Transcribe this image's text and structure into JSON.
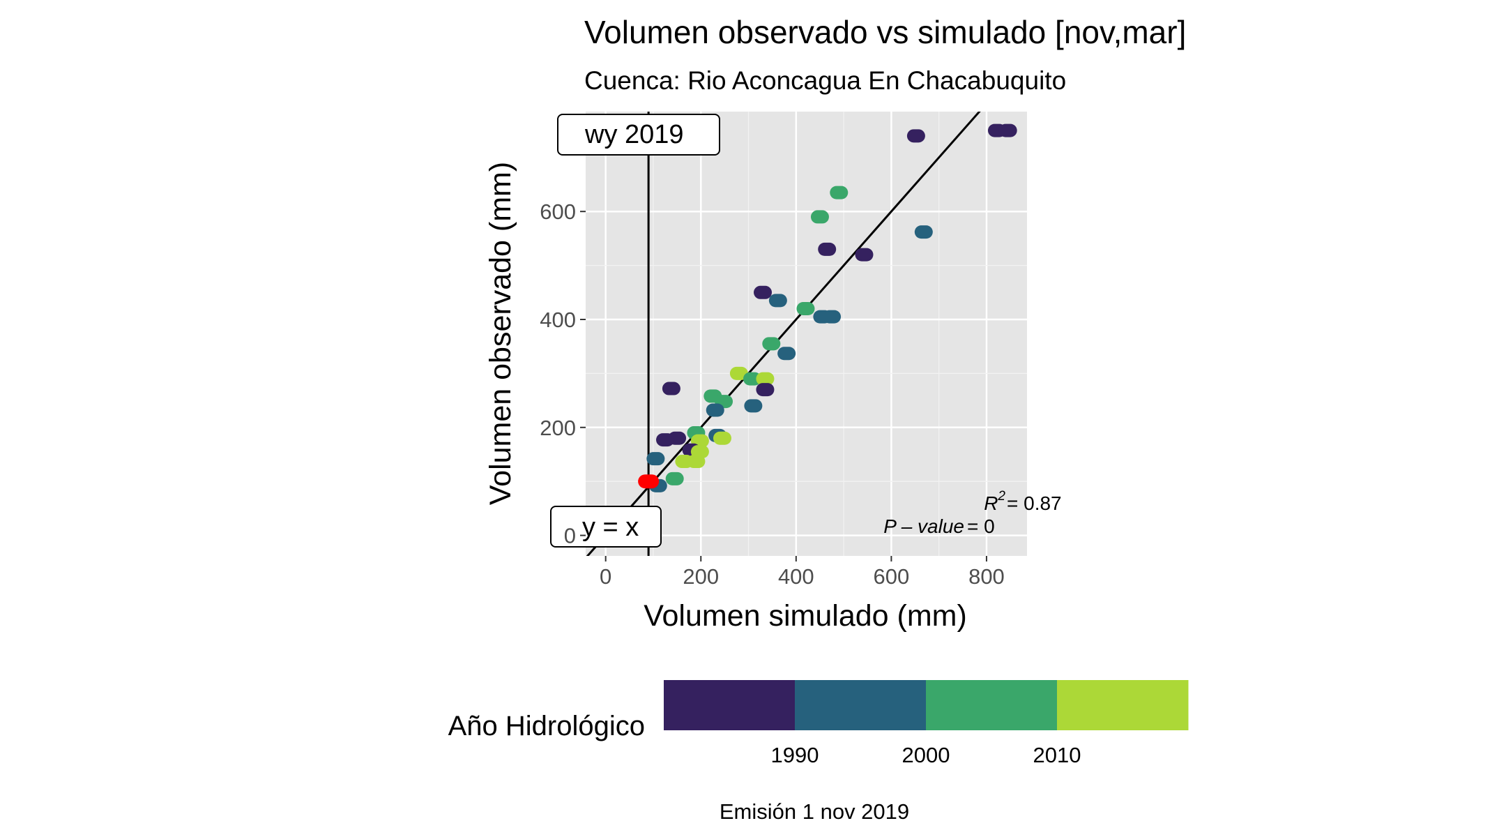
{
  "chart_data": {
    "type": "scatter",
    "title": "Volumen observado vs simulado [nov,mar]",
    "subtitle": "Cuenca: Rio Aconcagua En Chacabuquito",
    "xlabel": "Volumen simulado (mm)",
    "ylabel": "Volumen observado (mm)",
    "xlim": [
      -42,
      885
    ],
    "ylim": [
      -38,
      785
    ],
    "x_ticks": [
      0,
      200,
      400,
      600,
      800
    ],
    "y_ticks": [
      0,
      200,
      400,
      600
    ],
    "x_tick_labels": [
      "0",
      "200",
      "400",
      "600",
      "800"
    ],
    "y_tick_labels": [
      "0",
      "200",
      "400",
      "600"
    ],
    "grid": true,
    "panel_background": "#e5e5e5",
    "stats": {
      "r2_label": "R",
      "r2_sup": "2",
      "r2_value": "= 0.87",
      "p_label": "P – value",
      "p_value": "= 0"
    },
    "vline": {
      "x": 90,
      "label": "wy 2019"
    },
    "identity_line": {
      "label": "y = x"
    },
    "highlight": {
      "x": 90,
      "y": 100,
      "color": "#ff0000"
    },
    "points": [
      {
        "x": 822,
        "y": 750,
        "year": 1982
      },
      {
        "x": 845,
        "y": 750,
        "year": 1982
      },
      {
        "x": 652,
        "y": 740,
        "year": 1985
      },
      {
        "x": 490,
        "y": 635,
        "year": 2005
      },
      {
        "x": 450,
        "y": 590,
        "year": 2004
      },
      {
        "x": 668,
        "y": 562,
        "year": 1997
      },
      {
        "x": 465,
        "y": 530,
        "year": 1985
      },
      {
        "x": 543,
        "y": 520,
        "year": 1983
      },
      {
        "x": 330,
        "y": 450,
        "year": 1986
      },
      {
        "x": 362,
        "y": 435,
        "year": 1995
      },
      {
        "x": 420,
        "y": 420,
        "year": 2003
      },
      {
        "x": 455,
        "y": 405,
        "year": 1997
      },
      {
        "x": 475,
        "y": 405,
        "year": 1996
      },
      {
        "x": 348,
        "y": 355,
        "year": 2004
      },
      {
        "x": 380,
        "y": 337,
        "year": 1995
      },
      {
        "x": 280,
        "y": 300,
        "year": 2012
      },
      {
        "x": 308,
        "y": 290,
        "year": 2007
      },
      {
        "x": 335,
        "y": 290,
        "year": 2014
      },
      {
        "x": 138,
        "y": 272,
        "year": 1983
      },
      {
        "x": 335,
        "y": 270,
        "year": 1983
      },
      {
        "x": 225,
        "y": 258,
        "year": 2003
      },
      {
        "x": 248,
        "y": 248,
        "year": 2005
      },
      {
        "x": 310,
        "y": 240,
        "year": 1995
      },
      {
        "x": 230,
        "y": 232,
        "year": 1996
      },
      {
        "x": 190,
        "y": 190,
        "year": 2006
      },
      {
        "x": 235,
        "y": 185,
        "year": 1997
      },
      {
        "x": 150,
        "y": 180,
        "year": 1983
      },
      {
        "x": 125,
        "y": 177,
        "year": 1983
      },
      {
        "x": 245,
        "y": 180,
        "year": 2014
      },
      {
        "x": 198,
        "y": 175,
        "year": 2012
      },
      {
        "x": 180,
        "y": 158,
        "year": 1987
      },
      {
        "x": 198,
        "y": 155,
        "year": 2014
      },
      {
        "x": 105,
        "y": 142,
        "year": 1993
      },
      {
        "x": 165,
        "y": 137,
        "year": 2013
      },
      {
        "x": 190,
        "y": 137,
        "year": 2015
      },
      {
        "x": 145,
        "y": 105,
        "year": 2006
      },
      {
        "x": 110,
        "y": 92,
        "year": 1995
      }
    ]
  },
  "legend": {
    "title": "Año Hidrológico",
    "colors": [
      "#35215f",
      "#26617d",
      "#3aa76a",
      "#acd837"
    ],
    "labels": [
      "1990",
      "2000",
      "2010"
    ]
  },
  "caption": "Emisión 1 nov 2019"
}
